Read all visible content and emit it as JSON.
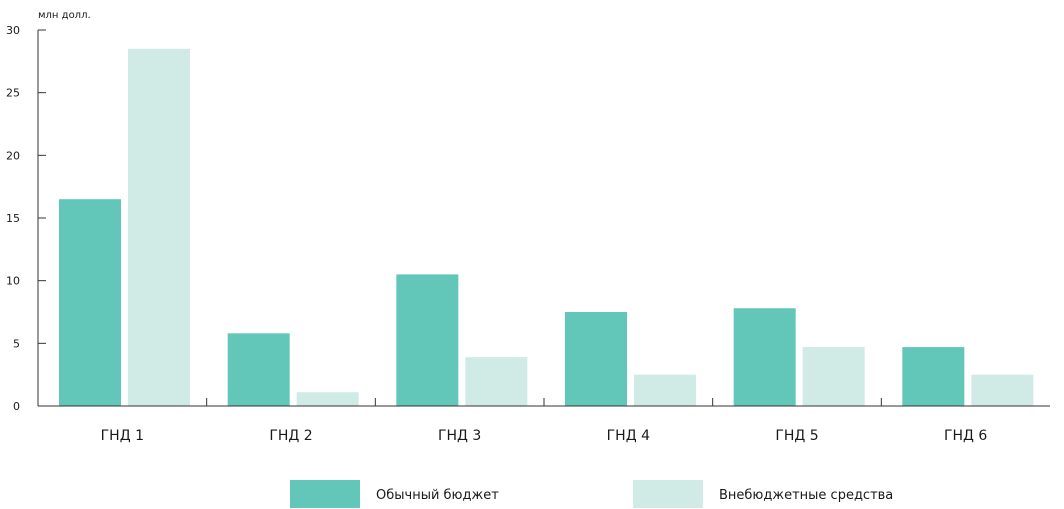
{
  "chart_data": {
    "type": "bar",
    "y_unit_label": "млн долл.",
    "categories": [
      "ГНД 1",
      "ГНД 2",
      "ГНД 3",
      "ГНД 4",
      "ГНД 5",
      "ГНД 6"
    ],
    "series": [
      {
        "name": "Обычный бюджет",
        "color": "#62c6b8",
        "values": [
          16.5,
          5.8,
          10.5,
          7.5,
          7.8,
          4.7
        ]
      },
      {
        "name": "Внебюджетные средства",
        "color": "#d0ebe6",
        "values": [
          28.5,
          1.1,
          3.9,
          2.5,
          4.7,
          2.5
        ]
      }
    ],
    "ylim": [
      0,
      30
    ],
    "yticks": [
      0,
      5,
      10,
      15,
      20,
      25,
      30
    ],
    "grid": false,
    "legend_position": "bottom"
  }
}
